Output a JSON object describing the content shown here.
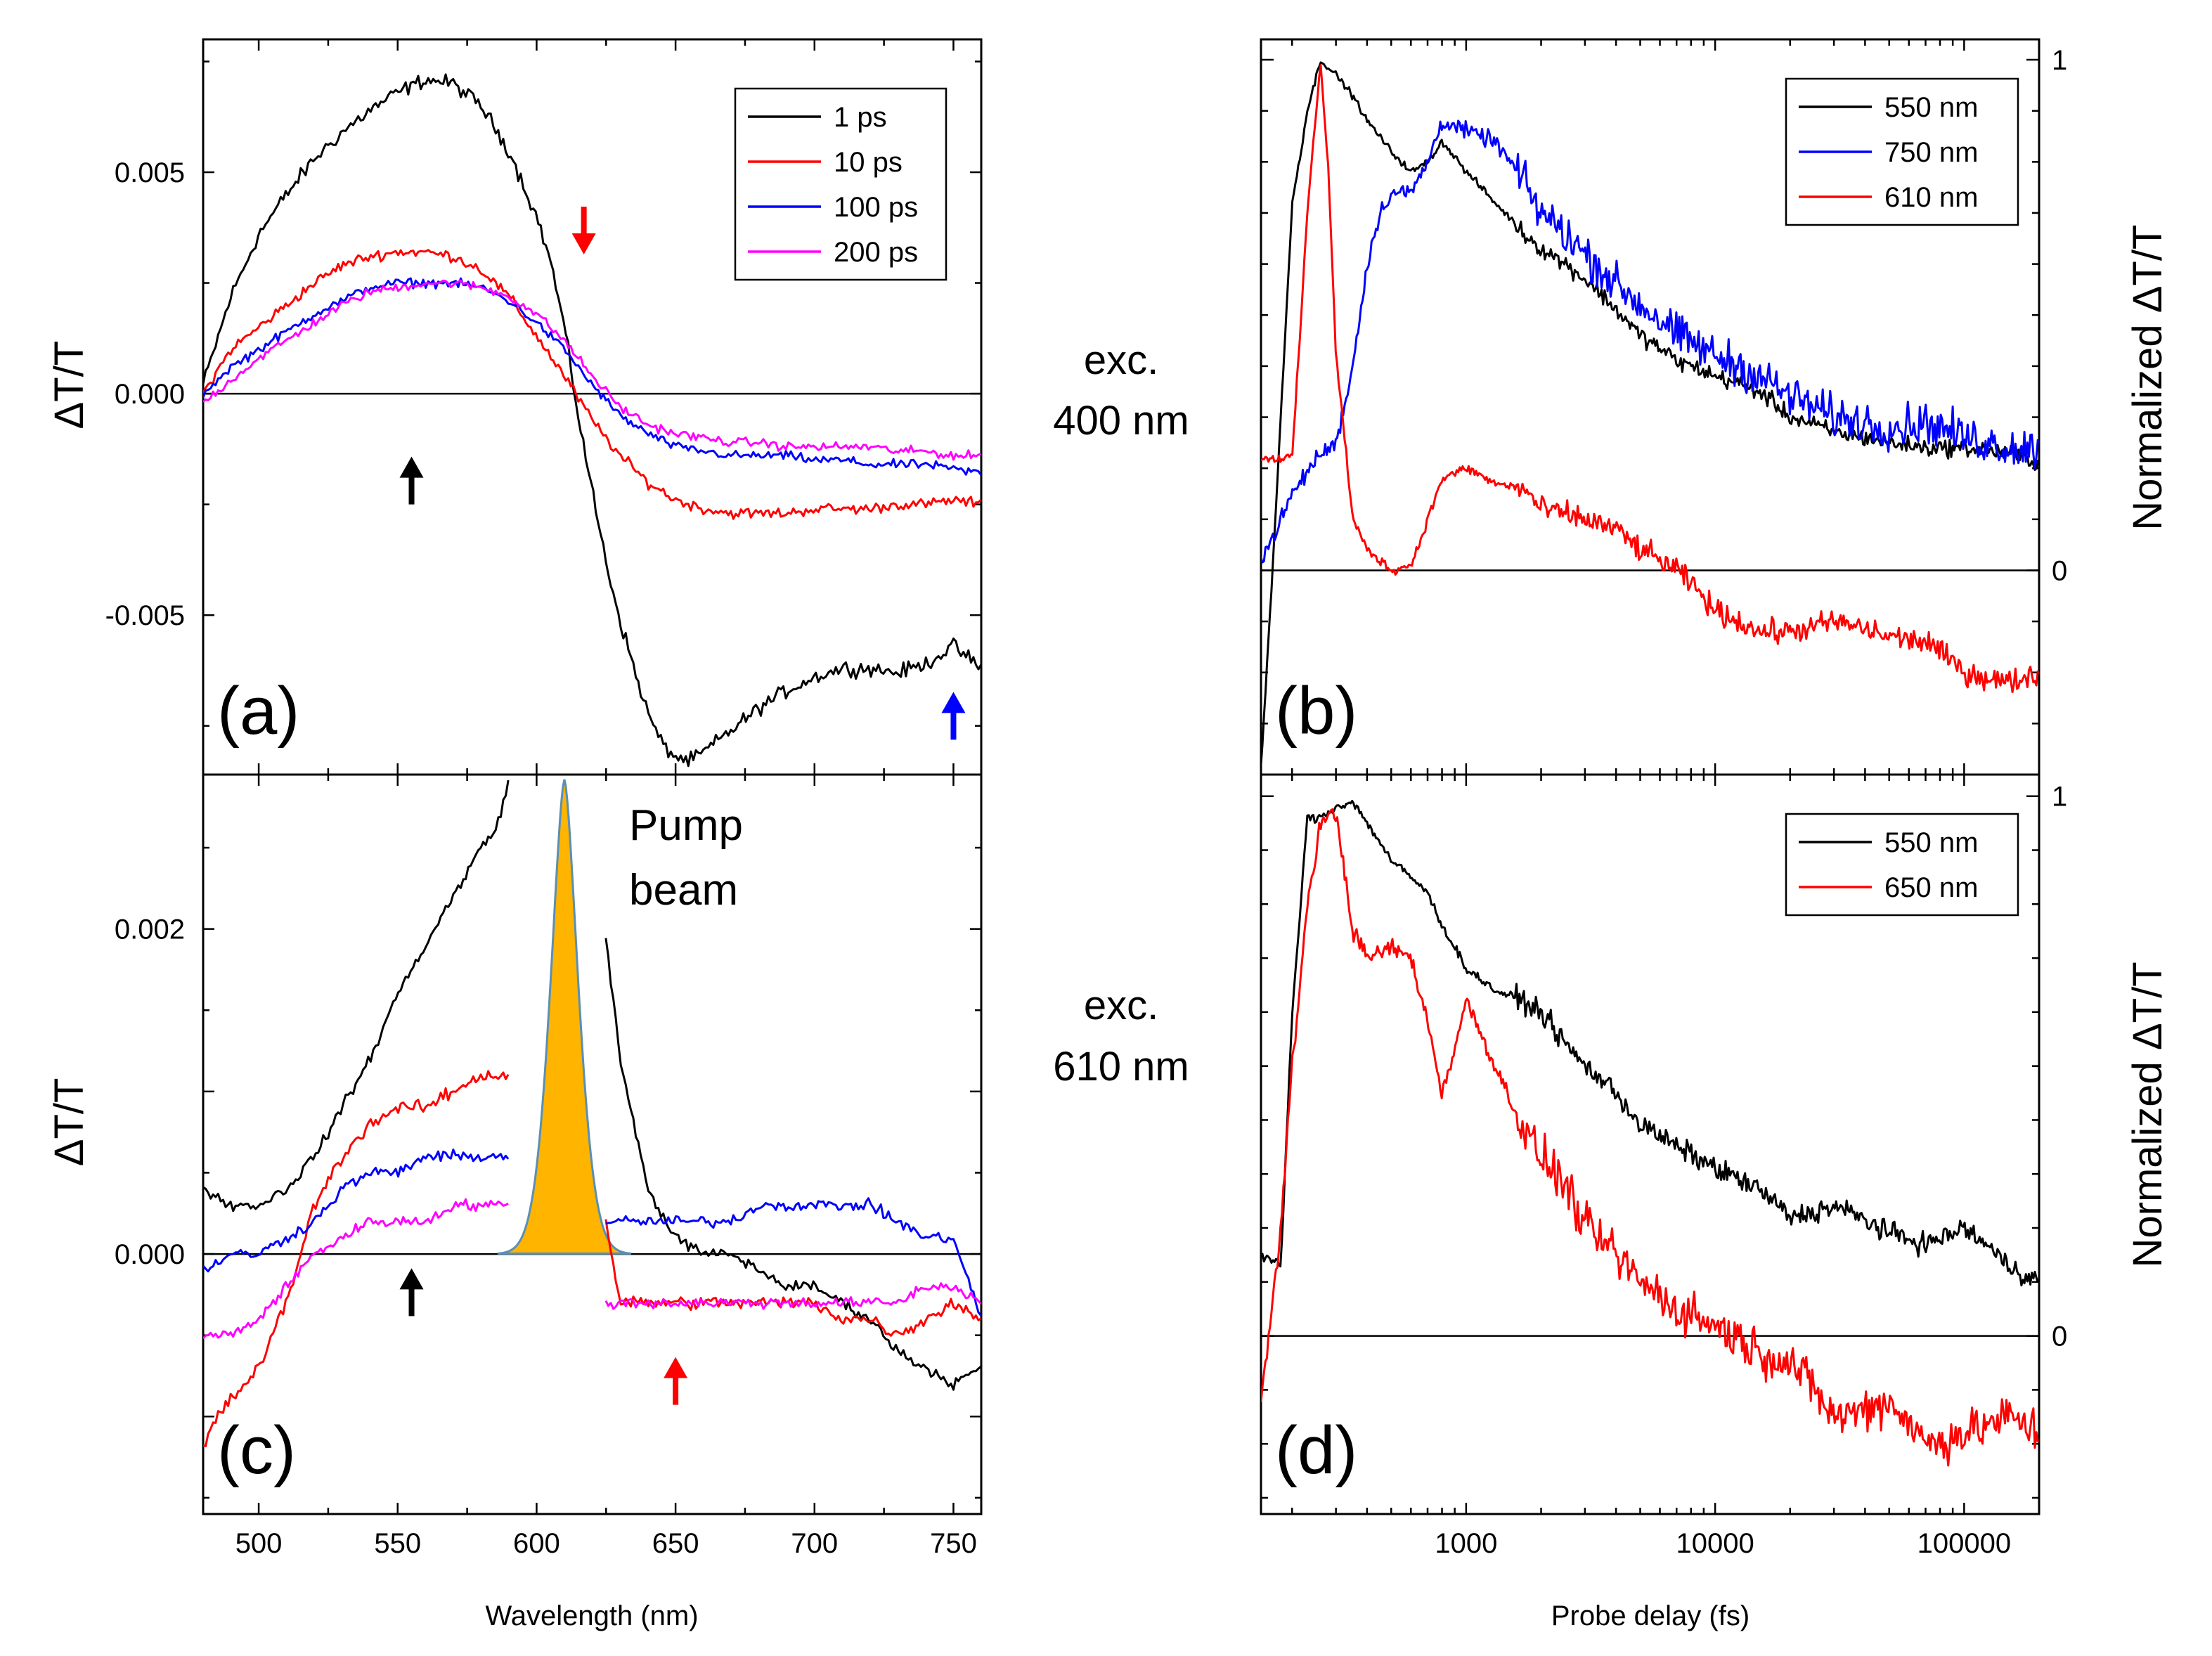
{
  "figure": {
    "side_labels": {
      "top": {
        "line1": "exc.",
        "line2": "400 nm"
      },
      "bottom": {
        "line1": "exc.",
        "line2": "610 nm"
      }
    },
    "shared_xlabels": {
      "left": "Wavelength (nm)",
      "right": "Probe delay (fs)"
    }
  },
  "chart_data": [
    {
      "id": "a",
      "type": "line",
      "panel_label": "(a)",
      "ylabel_plain": "ΔT/T",
      "xlim": [
        480,
        760
      ],
      "ylim": [
        -0.0086,
        0.008
      ],
      "yticks": [
        0.005,
        0.0,
        -0.005
      ],
      "ytick_labels": [
        "0.005",
        "0.000",
        "-0.005"
      ],
      "xticks": [
        500,
        550,
        600,
        650,
        700,
        750
      ],
      "zero_line": true,
      "legend": {
        "position": "top-right"
      },
      "series": [
        {
          "name": "1 ps",
          "color": "#000000",
          "x": [
            480,
            490,
            500,
            510,
            520,
            530,
            540,
            550,
            560,
            570,
            580,
            590,
            600,
            605,
            610,
            615,
            620,
            625,
            630,
            635,
            640,
            645,
            650,
            655,
            660,
            670,
            680,
            690,
            700,
            710,
            720,
            730,
            740,
            750,
            760
          ],
          "y": [
            0.0002,
            0.0022,
            0.0036,
            0.0045,
            0.0053,
            0.0059,
            0.0064,
            0.0068,
            0.0071,
            0.007,
            0.0065,
            0.0055,
            0.004,
            0.003,
            0.0015,
            -0.0005,
            -0.0022,
            -0.0038,
            -0.0051,
            -0.0062,
            -0.0072,
            -0.0079,
            -0.0082,
            -0.0083,
            -0.0081,
            -0.0076,
            -0.0071,
            -0.0067,
            -0.0064,
            -0.0062,
            -0.0062,
            -0.0063,
            -0.0061,
            -0.0057,
            -0.0062
          ],
          "noise": 0.00025
        },
        {
          "name": "10 ps",
          "color": "#ff0000",
          "x": [
            480,
            490,
            500,
            510,
            520,
            530,
            540,
            550,
            560,
            570,
            580,
            590,
            600,
            610,
            620,
            630,
            640,
            650,
            660,
            670,
            680,
            690,
            700,
            710,
            720,
            730,
            740,
            750,
            760
          ],
          "y": [
            0.0,
            0.001,
            0.0015,
            0.002,
            0.0025,
            0.0029,
            0.0031,
            0.0032,
            0.0032,
            0.0031,
            0.0028,
            0.0022,
            0.0013,
            0.0004,
            -0.0006,
            -0.0014,
            -0.002,
            -0.0024,
            -0.0026,
            -0.0027,
            -0.0027,
            -0.0027,
            -0.0026,
            -0.0026,
            -0.0026,
            -0.0025,
            -0.0025,
            -0.0024,
            -0.0025
          ],
          "noise": 0.00018
        },
        {
          "name": "100 ps",
          "color": "#0000ff",
          "x": [
            480,
            490,
            500,
            510,
            520,
            530,
            540,
            550,
            560,
            570,
            580,
            590,
            600,
            610,
            620,
            630,
            640,
            650,
            660,
            670,
            680,
            690,
            700,
            710,
            720,
            730,
            740,
            750,
            760
          ],
          "y": [
            0.0,
            0.0006,
            0.001,
            0.0014,
            0.0018,
            0.0021,
            0.0024,
            0.0025,
            0.0025,
            0.0025,
            0.0024,
            0.0021,
            0.0016,
            0.001,
            0.0002,
            -0.0005,
            -0.0009,
            -0.0012,
            -0.0013,
            -0.0014,
            -0.0014,
            -0.0014,
            -0.0015,
            -0.0015,
            -0.0016,
            -0.0016,
            -0.0016,
            -0.0017,
            -0.0018
          ],
          "noise": 0.00015
        },
        {
          "name": "200 ps",
          "color": "#ff00ff",
          "x": [
            480,
            490,
            500,
            510,
            520,
            530,
            540,
            550,
            560,
            570,
            580,
            590,
            600,
            610,
            620,
            630,
            640,
            650,
            660,
            670,
            680,
            690,
            700,
            710,
            720,
            730,
            740,
            750,
            760
          ],
          "y": [
            -0.0002,
            0.0003,
            0.0008,
            0.0012,
            0.0016,
            0.002,
            0.0023,
            0.0024,
            0.0025,
            0.0025,
            0.0024,
            0.0022,
            0.0018,
            0.0012,
            0.0004,
            -0.0003,
            -0.0007,
            -0.0009,
            -0.001,
            -0.0011,
            -0.0011,
            -0.0012,
            -0.0012,
            -0.0012,
            -0.0012,
            -0.0013,
            -0.0013,
            -0.0014,
            -0.0014
          ],
          "noise": 0.00015
        }
      ],
      "arrows": [
        {
          "x": 555,
          "dir": "up",
          "color": "#000000",
          "at_fraction": 0.4
        },
        {
          "x": 617,
          "dir": "down",
          "color": "#ff0000",
          "at_fraction": 0.74
        },
        {
          "x": 750,
          "dir": "up",
          "color": "#0000ff",
          "at_fraction": 0.08
        }
      ]
    },
    {
      "id": "b",
      "type": "line",
      "panel_label": "(b)",
      "ylabel_right_plain": "Normalized ΔT/T",
      "xscale": "log",
      "xlim": [
        150,
        200000
      ],
      "ylim": [
        -0.4,
        1.04
      ],
      "right_yticks": [
        0,
        1
      ],
      "right_ytick_labels": [
        "0",
        "1"
      ],
      "zero_line": true,
      "legend": {
        "position": "top-right"
      },
      "series": [
        {
          "name": "550 nm",
          "color": "#000000",
          "x": [
            150,
            180,
            200,
            230,
            260,
            300,
            350,
            400,
            500,
            600,
            700,
            800,
            1000,
            1300,
            1700,
            2000,
            3000,
            4000,
            5000,
            7000,
            10000,
            15000,
            20000,
            30000,
            50000,
            70000,
            100000,
            150000,
            200000
          ],
          "y": [
            -0.38,
            0.3,
            0.72,
            0.9,
            1.0,
            0.97,
            0.93,
            0.88,
            0.82,
            0.78,
            0.8,
            0.84,
            0.78,
            0.72,
            0.66,
            0.63,
            0.57,
            0.51,
            0.46,
            0.41,
            0.38,
            0.35,
            0.3,
            0.27,
            0.25,
            0.24,
            0.24,
            0.23,
            0.21
          ],
          "noise": 0.025
        },
        {
          "name": "750 nm",
          "color": "#0000ff",
          "x": [
            150,
            200,
            250,
            300,
            350,
            400,
            450,
            500,
            600,
            700,
            800,
            1000,
            1300,
            1700,
            2000,
            3000,
            4000,
            5000,
            7000,
            10000,
            15000,
            20000,
            30000,
            50000,
            70000,
            100000,
            150000,
            200000
          ],
          "y": [
            0.02,
            0.15,
            0.22,
            0.25,
            0.4,
            0.6,
            0.7,
            0.74,
            0.74,
            0.8,
            0.88,
            0.86,
            0.84,
            0.76,
            0.7,
            0.62,
            0.56,
            0.52,
            0.46,
            0.42,
            0.38,
            0.34,
            0.3,
            0.28,
            0.29,
            0.26,
            0.24,
            0.24
          ],
          "noise": 0.06
        },
        {
          "name": "610 nm",
          "color": "#ff0000",
          "x": [
            150,
            200,
            230,
            260,
            280,
            300,
            350,
            400,
            500,
            600,
            700,
            800,
            1000,
            1300,
            1700,
            2000,
            3000,
            4000,
            5000,
            7000,
            10000,
            15000,
            20000,
            30000,
            50000,
            70000,
            100000,
            150000,
            200000
          ],
          "y": [
            0.22,
            0.22,
            0.7,
            1.0,
            0.78,
            0.42,
            0.1,
            0.04,
            0.0,
            0.01,
            0.1,
            0.18,
            0.2,
            0.17,
            0.16,
            0.12,
            0.1,
            0.08,
            0.04,
            0.0,
            -0.08,
            -0.12,
            -0.12,
            -0.1,
            -0.13,
            -0.14,
            -0.2,
            -0.22,
            -0.2
          ],
          "noise": 0.035
        }
      ]
    },
    {
      "id": "c",
      "type": "line",
      "panel_label": "(c)",
      "ylabel_plain": "ΔT/T",
      "xlabel": "Wavelength (nm)",
      "xlim": [
        480,
        760
      ],
      "ylim": [
        -0.0016,
        0.00295
      ],
      "yticks": [
        0.002,
        0.0
      ],
      "ytick_labels": [
        "0.002",
        "0.000"
      ],
      "xticks": [
        500,
        550,
        600,
        650,
        700,
        750
      ],
      "xtick_labels": [
        "500",
        "550",
        "600",
        "650",
        "700",
        "750"
      ],
      "zero_line": true,
      "annotation": {
        "line1": "Pump",
        "line2": "beam",
        "center_nm": 610,
        "sigma_nm": 6.5,
        "peak": 0.00292,
        "fill": "#ffb400",
        "stroke": "#5a8fb4"
      },
      "gap": [
        590,
        624
      ],
      "series": [
        {
          "name": "1 ps",
          "color": "#000000",
          "x": [
            480,
            490,
            500,
            510,
            520,
            530,
            540,
            550,
            560,
            570,
            580,
            585,
            590,
            624,
            630,
            640,
            650,
            660,
            670,
            680,
            690,
            700,
            710,
            720,
            730,
            740,
            750,
            760
          ],
          "y": [
            0.0004,
            0.0003,
            0.0003,
            0.0004,
            0.0006,
            0.0009,
            0.0012,
            0.0016,
            0.0019,
            0.0022,
            0.0025,
            0.0026,
            0.0029,
            0.0021,
            0.0012,
            0.0004,
            0.0001,
            0.0,
            0.0,
            -0.0001,
            -0.0002,
            -0.0002,
            -0.0003,
            -0.0004,
            -0.0006,
            -0.0007,
            -0.0008,
            -0.0007
          ],
          "noise": 5e-05
        },
        {
          "name": "10 ps",
          "color": "#ff0000",
          "x": [
            480,
            485,
            490,
            500,
            510,
            520,
            530,
            540,
            550,
            560,
            570,
            580,
            590,
            624,
            630,
            640,
            650,
            660,
            670,
            680,
            690,
            700,
            710,
            720,
            730,
            740,
            750,
            760
          ],
          "y": [
            -0.0012,
            -0.001,
            -0.0009,
            -0.0007,
            -0.0003,
            0.0003,
            0.0006,
            0.0008,
            0.0009,
            0.0009,
            0.001,
            0.0011,
            0.0011,
            0.0003,
            -0.0003,
            -0.0003,
            -0.0003,
            -0.0003,
            -0.0003,
            -0.0003,
            -0.0003,
            -0.0003,
            -0.0004,
            -0.0004,
            -0.0005,
            -0.0004,
            -0.0003,
            -0.0004
          ],
          "noise": 6e-05
        },
        {
          "name": "100 ps",
          "color": "#0000ff",
          "x": [
            480,
            490,
            500,
            510,
            520,
            530,
            540,
            550,
            560,
            570,
            580,
            590,
            624,
            630,
            640,
            650,
            660,
            670,
            680,
            690,
            700,
            710,
            720,
            730,
            740,
            750,
            760
          ],
          "y": [
            -0.0001,
            0.0,
            0.0,
            0.0001,
            0.0002,
            0.0004,
            0.0005,
            0.0005,
            0.0006,
            0.0006,
            0.0006,
            0.0006,
            0.0002,
            0.0002,
            0.0002,
            0.0002,
            0.0002,
            0.0002,
            0.0003,
            0.0003,
            0.0003,
            0.0003,
            0.0003,
            0.0002,
            0.0001,
            0.0001,
            -0.0004
          ],
          "noise": 5e-05
        },
        {
          "name": "200 ps",
          "color": "#ff00ff",
          "x": [
            480,
            490,
            500,
            510,
            520,
            530,
            540,
            550,
            560,
            570,
            580,
            590,
            624,
            630,
            640,
            650,
            660,
            670,
            680,
            690,
            700,
            710,
            720,
            730,
            740,
            750,
            760
          ],
          "y": [
            -0.0005,
            -0.0005,
            -0.0004,
            -0.0002,
            0.0,
            0.0001,
            0.0002,
            0.0002,
            0.0002,
            0.0003,
            0.0003,
            0.0003,
            -0.0003,
            -0.0003,
            -0.0003,
            -0.0003,
            -0.0003,
            -0.0003,
            -0.0003,
            -0.0003,
            -0.0003,
            -0.0003,
            -0.0003,
            -0.0003,
            -0.0002,
            -0.0002,
            -0.0003
          ],
          "noise": 5e-05
        }
      ],
      "arrows": [
        {
          "x": 555,
          "dir": "up",
          "color": "#000000",
          "at_fraction": 0.3
        },
        {
          "x": 650,
          "dir": "up",
          "color": "#ff0000",
          "at_fraction": 0.18
        }
      ]
    },
    {
      "id": "d",
      "type": "line",
      "panel_label": "(d)",
      "ylabel_right_plain": "Normalized ΔT/T",
      "xlabel": "Probe delay (fs)",
      "xscale": "log",
      "xlim": [
        150,
        200000
      ],
      "xticks": [
        1000,
        10000,
        100000
      ],
      "xtick_labels": [
        "1000",
        "10000",
        "100000"
      ],
      "ylim": [
        -0.33,
        1.04
      ],
      "right_yticks": [
        0,
        1
      ],
      "right_ytick_labels": [
        "0",
        "1"
      ],
      "zero_line": true,
      "legend": {
        "position": "top-right"
      },
      "series": [
        {
          "name": "550 nm",
          "color": "#000000",
          "x": [
            150,
            180,
            200,
            230,
            260,
            300,
            350,
            400,
            500,
            600,
            700,
            800,
            1000,
            1300,
            1700,
            2000,
            2500,
            3000,
            4000,
            5000,
            7000,
            10000,
            15000,
            20000,
            30000,
            50000,
            70000,
            100000,
            150000,
            200000
          ],
          "y": [
            0.15,
            0.13,
            0.6,
            0.96,
            0.96,
            0.98,
            0.99,
            0.95,
            0.88,
            0.85,
            0.82,
            0.76,
            0.68,
            0.64,
            0.62,
            0.6,
            0.54,
            0.5,
            0.45,
            0.39,
            0.35,
            0.31,
            0.27,
            0.22,
            0.24,
            0.19,
            0.17,
            0.2,
            0.13,
            0.1
          ],
          "noise": 0.03
        },
        {
          "name": "650 nm",
          "color": "#ff0000",
          "x": [
            150,
            180,
            200,
            230,
            260,
            300,
            350,
            400,
            500,
            600,
            700,
            800,
            1000,
            1300,
            1700,
            2000,
            2500,
            3000,
            4000,
            5000,
            7000,
            10000,
            15000,
            20000,
            30000,
            50000,
            70000,
            100000,
            150000,
            200000
          ],
          "y": [
            -0.12,
            0.2,
            0.5,
            0.8,
            0.95,
            0.97,
            0.75,
            0.7,
            0.72,
            0.7,
            0.58,
            0.45,
            0.62,
            0.5,
            0.38,
            0.33,
            0.28,
            0.2,
            0.15,
            0.1,
            0.05,
            0.02,
            -0.03,
            -0.05,
            -0.15,
            -0.12,
            -0.2,
            -0.18,
            -0.15,
            -0.18
          ],
          "noise": 0.06
        }
      ]
    }
  ]
}
